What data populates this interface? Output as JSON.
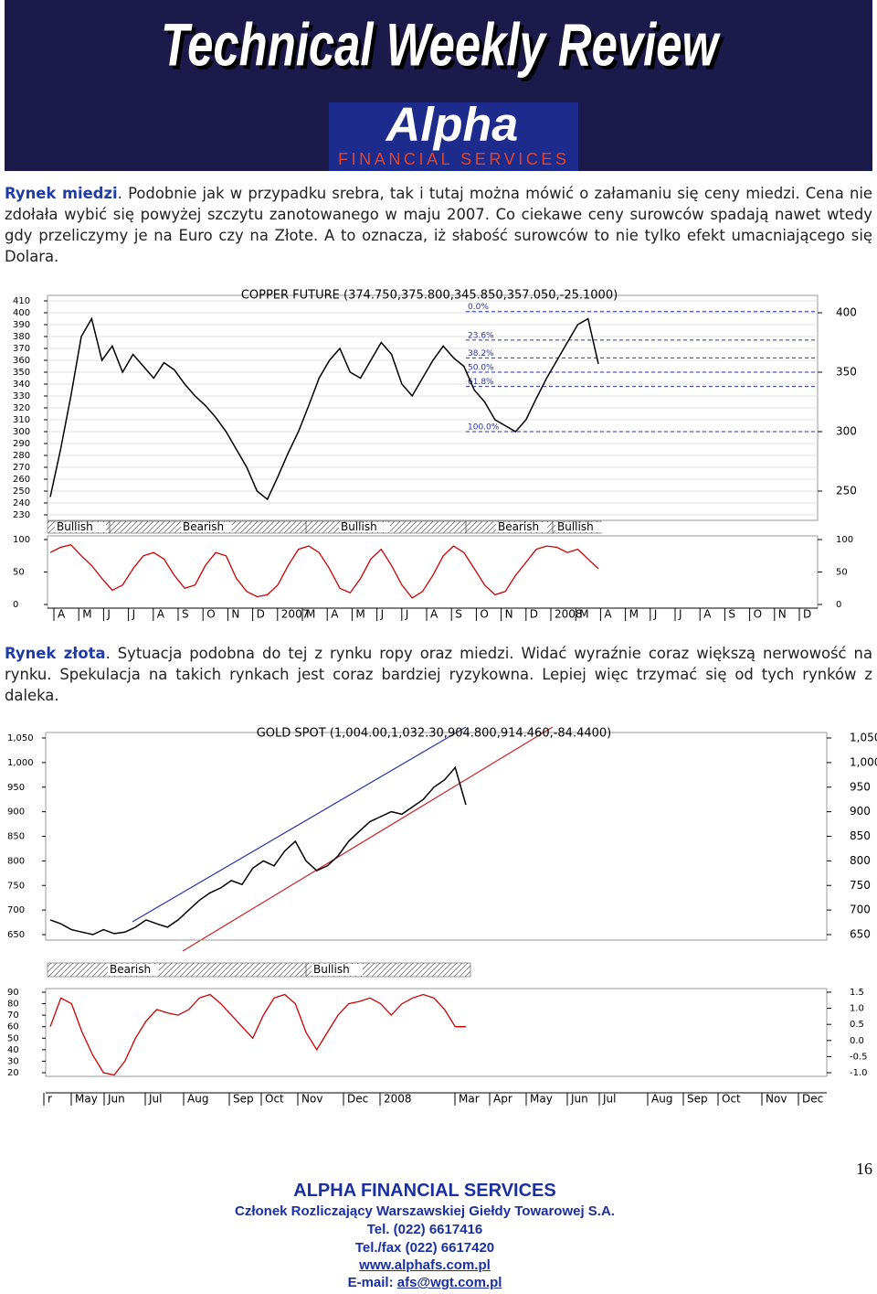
{
  "header": {
    "title": "Technical Weekly Review",
    "logo": "Alpha",
    "logo_sub": "FINANCIAL SERVICES"
  },
  "paragraphs": [
    {
      "heading": "Rynek miedzi",
      "text": ". Podobnie jak w przypadku srebra, tak i tutaj można mówić o załamaniu się ceny miedzi. Cena nie zdołała wybić się powyżej szczytu zanotowanego w maju 2007. Co ciekawe ceny surowców spadają nawet wtedy gdy przeliczymy je na Euro czy na Złote. A to oznacza, iż słabość surowców to nie tylko efekt umacniającego się Dolara."
    },
    {
      "heading": "Rynek złota",
      "text": ". Sytuacja podobna do tej z rynku ropy oraz miedzi. Widać wyraźnie coraz większą nerwowość na rynku. Spekulacja na takich rynkach jest coraz bardziej ryzykowna. Lepiej więc trzymać się od tych rynków z daleka."
    }
  ],
  "chart_data": [
    {
      "type": "line",
      "title": "COPPER FUTURE (374.750,375.800,345.850,357.050,-25.1000)",
      "color": "#000000",
      "grid": true,
      "values": [
        245,
        285,
        330,
        380,
        395,
        360,
        372,
        350,
        365,
        355,
        345,
        358,
        352,
        340,
        330,
        322,
        312,
        300,
        285,
        270,
        250,
        243,
        262,
        282,
        300,
        322,
        345,
        360,
        370,
        350,
        345,
        360,
        375,
        365,
        340,
        330,
        345,
        360,
        372,
        362,
        355,
        335,
        325,
        310,
        305,
        300,
        310,
        328,
        345,
        360,
        375,
        390,
        395,
        357
      ],
      "ylim": [
        230,
        410
      ],
      "yticks": [
        230,
        240,
        250,
        260,
        270,
        280,
        290,
        300,
        310,
        320,
        330,
        340,
        350,
        360,
        370,
        380,
        390,
        400,
        410
      ],
      "y2ticks": [
        250,
        300,
        350,
        400
      ],
      "fib_levels": [
        {
          "label": "0.0%",
          "value": 401
        },
        {
          "label": "23.6%",
          "value": 377
        },
        {
          "label": "38.2%",
          "value": 362
        },
        {
          "label": "50.0%",
          "value": 350
        },
        {
          "label": "61.8%",
          "value": 338
        },
        {
          "label": "100.0%",
          "value": 300
        }
      ],
      "signals": [
        "Bullish",
        "Bearish",
        "Bullish",
        "Bearish",
        "Bullish"
      ],
      "oscillator": {
        "color": "#cc0000",
        "values": [
          80,
          88,
          92,
          75,
          60,
          40,
          22,
          30,
          55,
          75,
          80,
          70,
          45,
          25,
          30,
          60,
          80,
          75,
          40,
          20,
          12,
          15,
          30,
          60,
          85,
          90,
          80,
          55,
          25,
          18,
          40,
          70,
          85,
          60,
          30,
          10,
          20,
          45,
          75,
          90,
          80,
          55,
          30,
          15,
          20,
          45,
          65,
          85,
          90,
          88,
          80,
          85,
          70,
          55
        ],
        "ylim": [
          0,
          100
        ],
        "yticks": [
          0,
          50,
          100
        ],
        "y2lim": [
          0,
          100
        ],
        "y2ticks": [
          0,
          50,
          100
        ]
      },
      "x_labels": [
        "A",
        "M",
        "J",
        "J",
        "A",
        "S",
        "O",
        "N",
        "D",
        "2007",
        "M",
        "A",
        "M",
        "J",
        "J",
        "A",
        "S",
        "O",
        "N",
        "D",
        "2008",
        "M",
        "A",
        "M",
        "J",
        "J",
        "A",
        "S",
        "O",
        "N",
        "D"
      ]
    },
    {
      "type": "line",
      "title": "GOLD SPOT (1,004.00,1,032.30,904.800,914.460,-84.4400)",
      "color": "#000000",
      "grid": false,
      "values": [
        680,
        672,
        660,
        655,
        650,
        660,
        652,
        655,
        665,
        680,
        672,
        665,
        680,
        700,
        720,
        735,
        745,
        760,
        752,
        785,
        800,
        790,
        820,
        840,
        800,
        780,
        790,
        810,
        840,
        860,
        880,
        890,
        900,
        895,
        910,
        925,
        950,
        965,
        990,
        914
      ],
      "ylim": [
        650,
        1050
      ],
      "yticks": [
        650,
        700,
        750,
        800,
        850,
        900,
        950,
        {
          "value": 1000,
          "label": "1,000"
        },
        {
          "value": 1050,
          "label": "1,050"
        }
      ],
      "y2ticks": [
        650,
        700,
        750,
        800,
        850,
        900,
        950,
        {
          "value": 1000,
          "label": "1,000"
        },
        {
          "value": 1050,
          "label": "1,050"
        }
      ],
      "signals": [
        "Bearish",
        "Bullish"
      ],
      "oscillator": {
        "color": "#cc0000",
        "values": [
          60,
          85,
          80,
          55,
          35,
          20,
          18,
          30,
          50,
          65,
          75,
          72,
          70,
          75,
          85,
          88,
          80,
          70,
          60,
          50,
          70,
          85,
          88,
          80,
          55,
          40,
          55,
          70,
          80,
          82,
          85,
          80,
          70,
          80,
          85,
          88,
          85,
          75,
          60,
          60
        ],
        "ylim": [
          20,
          90
        ],
        "yticks": [
          20,
          30,
          40,
          50,
          60,
          70,
          80,
          90
        ],
        "y2lim": [
          -1,
          1.5
        ],
        "y2ticks": [
          {
            "value": -1,
            "label": "-1.0"
          },
          -0.5,
          {
            "value": 0,
            "label": "0.0"
          },
          0.5,
          {
            "value": 1,
            "label": "1.0"
          },
          1.5
        ]
      },
      "x_labels": [
        "r",
        "May",
        "Jun",
        "Jul",
        "Aug",
        "Sep",
        "Oct",
        "Nov",
        "Dec",
        "2008",
        "Mar",
        "Apr",
        "May",
        "Jun",
        "Jul",
        "Aug",
        "Sep",
        "Oct",
        "Nov",
        "Dec"
      ]
    }
  ],
  "footer": {
    "page": "16",
    "company": "ALPHA FINANCIAL SERVICES",
    "member": "Członek Rozliczający Warszawskiej Giełdy Towarowej S.A.",
    "tel": "Tel. (022) 6617416",
    "fax": "Tel./fax (022) 6617420",
    "www": "www.alphafs.com.pl",
    "email_label": "E-mail: ",
    "email": "afs@wgt.com.pl"
  }
}
